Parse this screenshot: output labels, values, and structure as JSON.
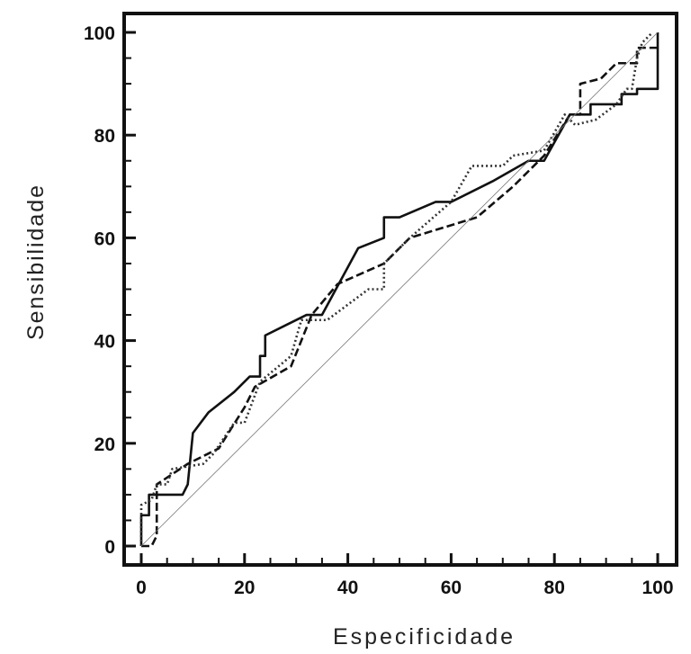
{
  "chart_data": {
    "type": "line",
    "title": "",
    "xlabel": "Especificidade",
    "ylabel": "Sensibilidade",
    "xlim": [
      0,
      100
    ],
    "ylim": [
      0,
      100
    ],
    "xticks": [
      "0",
      "20",
      "40",
      "60",
      "80",
      "100"
    ],
    "yticks": [
      "0",
      "20",
      "40",
      "60",
      "80",
      "100"
    ],
    "grid": false,
    "series": [
      {
        "name": "solid",
        "style": "solid",
        "color": "#111111",
        "points": [
          [
            0,
            0
          ],
          [
            0,
            6
          ],
          [
            1.5,
            6
          ],
          [
            1.5,
            10
          ],
          [
            8,
            10
          ],
          [
            9,
            12
          ],
          [
            10,
            22
          ],
          [
            13,
            26
          ],
          [
            18,
            30
          ],
          [
            21,
            33
          ],
          [
            23,
            33
          ],
          [
            23,
            37
          ],
          [
            24,
            37
          ],
          [
            24,
            41
          ],
          [
            28,
            43
          ],
          [
            32,
            45
          ],
          [
            35,
            45
          ],
          [
            42,
            58
          ],
          [
            47,
            60
          ],
          [
            47,
            64
          ],
          [
            50,
            64
          ],
          [
            57,
            67
          ],
          [
            60,
            67
          ],
          [
            68,
            71
          ],
          [
            75,
            75
          ],
          [
            78,
            75
          ],
          [
            83,
            84
          ],
          [
            87,
            84
          ],
          [
            87,
            86
          ],
          [
            93,
            86
          ],
          [
            93,
            88
          ],
          [
            96,
            88
          ],
          [
            96,
            89
          ],
          [
            100,
            89
          ],
          [
            100,
            100
          ]
        ]
      },
      {
        "name": "dashed",
        "style": "dashed",
        "color": "#111111",
        "points": [
          [
            0,
            0
          ],
          [
            2,
            0
          ],
          [
            3,
            2
          ],
          [
            3,
            12
          ],
          [
            6,
            14
          ],
          [
            9,
            16
          ],
          [
            15,
            19
          ],
          [
            20,
            27
          ],
          [
            22,
            31
          ],
          [
            29,
            35
          ],
          [
            33,
            45
          ],
          [
            38,
            51
          ],
          [
            47,
            55
          ],
          [
            52,
            60
          ],
          [
            65,
            64
          ],
          [
            72,
            70
          ],
          [
            78,
            76
          ],
          [
            83,
            84
          ],
          [
            85,
            84
          ],
          [
            85,
            90
          ],
          [
            89,
            91
          ],
          [
            92,
            94
          ],
          [
            96,
            94
          ],
          [
            96,
            97
          ],
          [
            100,
            97
          ]
        ]
      },
      {
        "name": "dotted",
        "style": "dotted",
        "color": "#333333",
        "points": [
          [
            0,
            0
          ],
          [
            0,
            5
          ],
          [
            0,
            8
          ],
          [
            2,
            9
          ],
          [
            3,
            12
          ],
          [
            5,
            12
          ],
          [
            6,
            15
          ],
          [
            12,
            16
          ],
          [
            14,
            18
          ],
          [
            18,
            24
          ],
          [
            20,
            24
          ],
          [
            23,
            32
          ],
          [
            29,
            37
          ],
          [
            31,
            44
          ],
          [
            36,
            44
          ],
          [
            44,
            50
          ],
          [
            47,
            50
          ],
          [
            47,
            55
          ],
          [
            52,
            60
          ],
          [
            60,
            67
          ],
          [
            64,
            74
          ],
          [
            70,
            74
          ],
          [
            72,
            76
          ],
          [
            78,
            77
          ],
          [
            82,
            84
          ],
          [
            84,
            82
          ],
          [
            88,
            83
          ],
          [
            92,
            86
          ],
          [
            94,
            89
          ],
          [
            95,
            89
          ],
          [
            96,
            95
          ],
          [
            97,
            98
          ],
          [
            99,
            100
          ]
        ]
      },
      {
        "name": "reference",
        "style": "thin",
        "color": "#777777",
        "points": [
          [
            0,
            0
          ],
          [
            100,
            100
          ]
        ]
      }
    ]
  }
}
